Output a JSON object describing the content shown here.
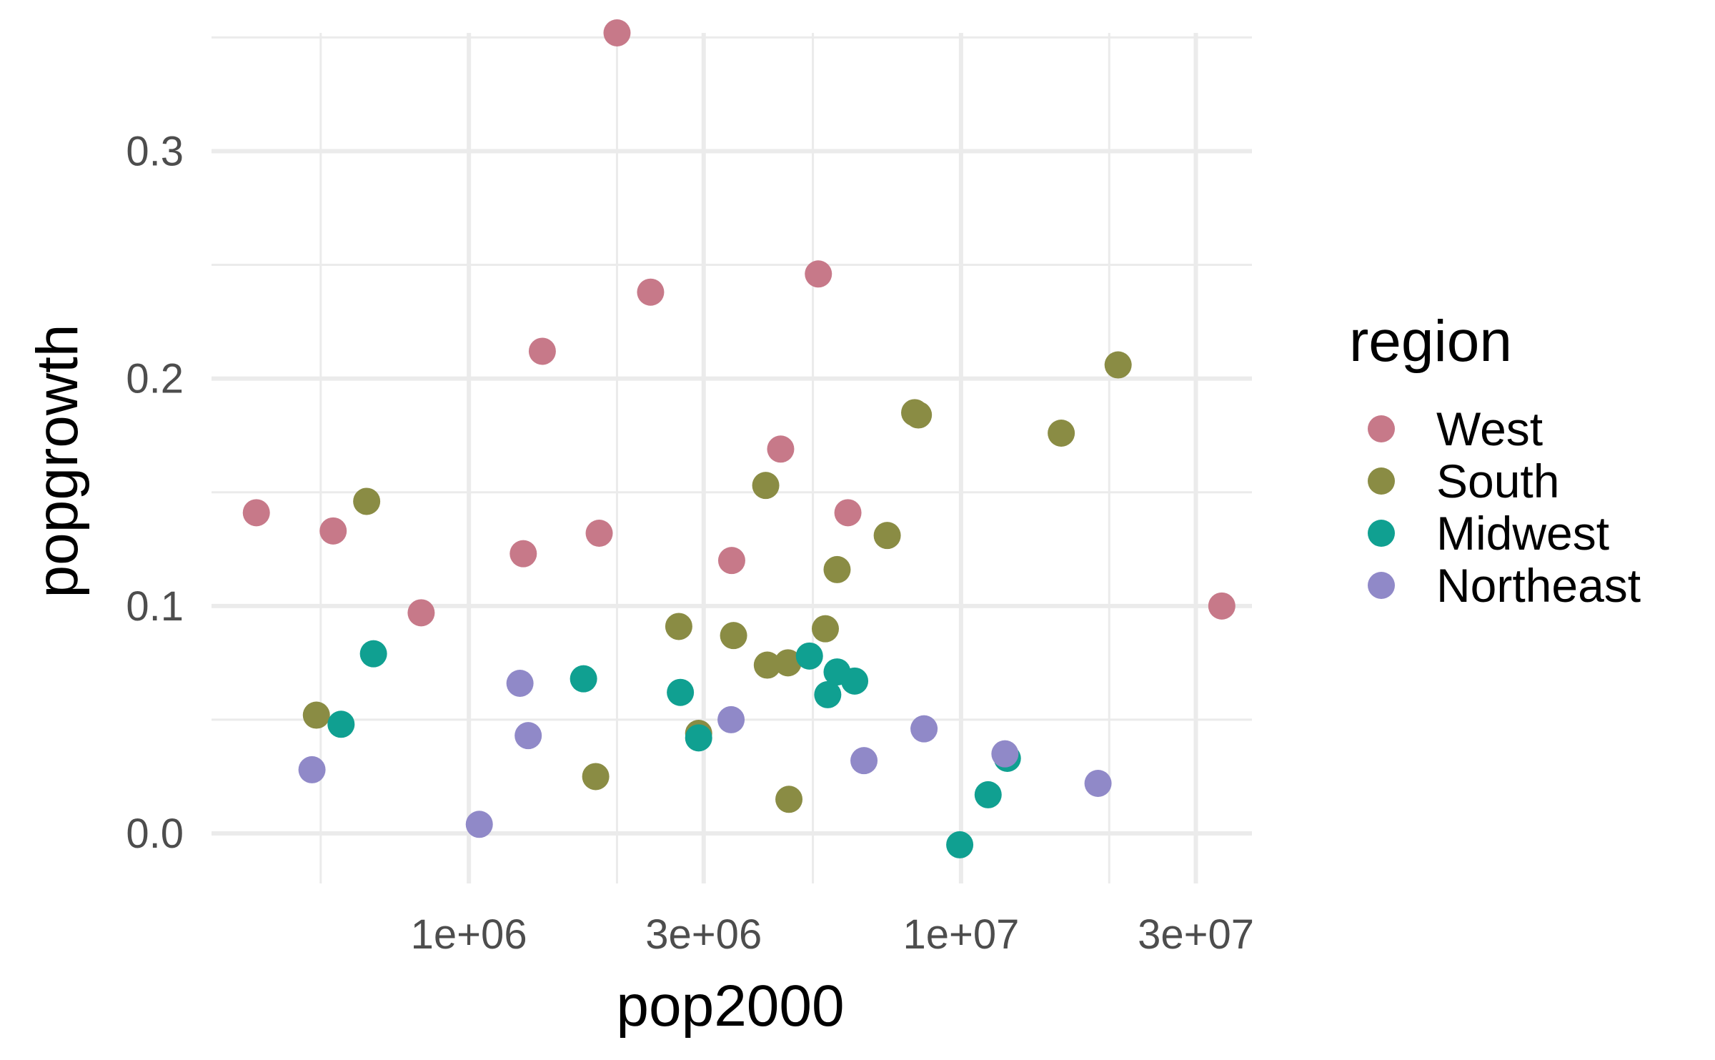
{
  "chart_data": {
    "type": "scatter",
    "title": "",
    "xlabel": "pop2000",
    "ylabel": "popgrowth",
    "x_scale": "log10",
    "xlim": [
      300000,
      39000000
    ],
    "ylim": [
      -0.022,
      0.352
    ],
    "x_ticks": [
      1000000,
      3000000,
      10000000,
      30000000
    ],
    "x_tick_labels": [
      "1e+06",
      "3e+06",
      "1e+07",
      "3e+07"
    ],
    "x_minor_ticks": [
      500000,
      2000000,
      5000000,
      20000000
    ],
    "y_ticks": [
      0.0,
      0.1,
      0.2,
      0.3
    ],
    "y_tick_labels": [
      "0.0",
      "0.1",
      "0.2",
      "0.3"
    ],
    "y_minor_ticks": [
      0.05,
      0.15,
      0.25,
      0.35
    ],
    "grid": true,
    "legend": {
      "title": "region",
      "position": "right"
    },
    "series": [
      {
        "name": "West",
        "color": "#c77989",
        "points": [
          {
            "x": 370000,
            "y": 0.141
          },
          {
            "x": 530000,
            "y": 0.133
          },
          {
            "x": 800000,
            "y": 0.097
          },
          {
            "x": 1290000,
            "y": 0.123
          },
          {
            "x": 1410000,
            "y": 0.212
          },
          {
            "x": 1840000,
            "y": 0.132
          },
          {
            "x": 2000000,
            "y": 0.352
          },
          {
            "x": 2340000,
            "y": 0.238
          },
          {
            "x": 3420000,
            "y": 0.12
          },
          {
            "x": 4300000,
            "y": 0.169
          },
          {
            "x": 5130000,
            "y": 0.246
          },
          {
            "x": 5890000,
            "y": 0.141
          },
          {
            "x": 33870000,
            "y": 0.1
          }
        ]
      },
      {
        "name": "South",
        "color": "#8a8c44",
        "points": [
          {
            "x": 490000,
            "y": 0.052
          },
          {
            "x": 620000,
            "y": 0.146
          },
          {
            "x": 1810000,
            "y": 0.025
          },
          {
            "x": 2670000,
            "y": 0.091
          },
          {
            "x": 2930000,
            "y": 0.044
          },
          {
            "x": 3450000,
            "y": 0.087
          },
          {
            "x": 4010000,
            "y": 0.153
          },
          {
            "x": 4040000,
            "y": 0.074
          },
          {
            "x": 4450000,
            "y": 0.075
          },
          {
            "x": 4470000,
            "y": 0.015
          },
          {
            "x": 5300000,
            "y": 0.09
          },
          {
            "x": 5600000,
            "y": 0.116
          },
          {
            "x": 7080000,
            "y": 0.131
          },
          {
            "x": 8050000,
            "y": 0.185
          },
          {
            "x": 8190000,
            "y": 0.184
          },
          {
            "x": 15980000,
            "y": 0.176
          },
          {
            "x": 20850000,
            "y": 0.206
          }
        ]
      },
      {
        "name": "Midwest",
        "color": "#10a091",
        "points": [
          {
            "x": 550000,
            "y": 0.048
          },
          {
            "x": 640000,
            "y": 0.079
          },
          {
            "x": 1710000,
            "y": 0.068
          },
          {
            "x": 2690000,
            "y": 0.062
          },
          {
            "x": 2930000,
            "y": 0.042
          },
          {
            "x": 4920000,
            "y": 0.078
          },
          {
            "x": 5360000,
            "y": 0.061
          },
          {
            "x": 5600000,
            "y": 0.071
          },
          {
            "x": 6080000,
            "y": 0.067
          },
          {
            "x": 9940000,
            "y": -0.005
          },
          {
            "x": 11350000,
            "y": 0.017
          },
          {
            "x": 12420000,
            "y": 0.033
          }
        ]
      },
      {
        "name": "Northeast",
        "color": "#9089c8",
        "points": [
          {
            "x": 480000,
            "y": 0.028
          },
          {
            "x": 1050000,
            "y": 0.004
          },
          {
            "x": 1270000,
            "y": 0.066
          },
          {
            "x": 1320000,
            "y": 0.043
          },
          {
            "x": 3410000,
            "y": 0.05
          },
          {
            "x": 6350000,
            "y": 0.032
          },
          {
            "x": 8410000,
            "y": 0.046
          },
          {
            "x": 12280000,
            "y": 0.035
          },
          {
            "x": 18980000,
            "y": 0.022
          }
        ]
      }
    ]
  }
}
